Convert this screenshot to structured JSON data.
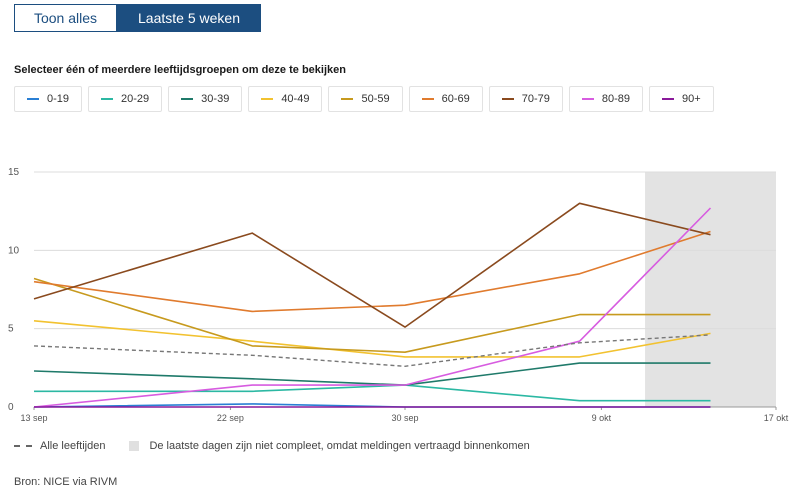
{
  "toggle": {
    "all_label": "Toon alles",
    "last_label": "Laatste 5 weken",
    "active": "Laatste 5 weken"
  },
  "selector": {
    "label": "Selecteer één of meerdere leeftijdsgroepen om deze te bekijken",
    "groups": [
      {
        "label": "0-19",
        "color": "#2a7fd4"
      },
      {
        "label": "20-29",
        "color": "#2cb8a3"
      },
      {
        "label": "30-39",
        "color": "#1f7a6a"
      },
      {
        "label": "40-49",
        "color": "#f2c230"
      },
      {
        "label": "50-59",
        "color": "#c79a1e"
      },
      {
        "label": "60-69",
        "color": "#e07b2e"
      },
      {
        "label": "70-79",
        "color": "#8a4a1e"
      },
      {
        "label": "80-89",
        "color": "#d75ce0"
      },
      {
        "label": "90+",
        "color": "#8a1a9a"
      }
    ]
  },
  "chart_data": {
    "type": "line",
    "x": [
      "13 sep",
      "22 sep",
      "30 sep",
      "9 okt",
      "17 okt"
    ],
    "ylim": [
      0,
      15
    ],
    "yticks": [
      "0",
      "5",
      "10",
      "15"
    ],
    "grid": true,
    "shaded_region": {
      "from": "11 okt",
      "to": "17 okt"
    },
    "series": [
      {
        "name": "0-19",
        "color": "#2a7fd4",
        "dates": [
          "13 sep",
          "23 sep",
          "30 sep",
          "8 okt",
          "14 okt"
        ],
        "values": [
          0.0,
          0.2,
          0.0,
          0.0,
          0.0
        ]
      },
      {
        "name": "20-29",
        "color": "#2cb8a3",
        "dates": [
          "13 sep",
          "23 sep",
          "30 sep",
          "8 okt",
          "14 okt"
        ],
        "values": [
          1.0,
          1.0,
          1.4,
          0.4,
          0.4
        ]
      },
      {
        "name": "30-39",
        "color": "#1f7a6a",
        "dates": [
          "13 sep",
          "23 sep",
          "30 sep",
          "8 okt",
          "14 okt"
        ],
        "values": [
          2.3,
          1.8,
          1.4,
          2.8,
          2.8
        ]
      },
      {
        "name": "40-49",
        "color": "#f2c230",
        "dates": [
          "13 sep",
          "23 sep",
          "30 sep",
          "8 okt",
          "14 okt"
        ],
        "values": [
          5.5,
          4.2,
          3.2,
          3.2,
          4.7
        ]
      },
      {
        "name": "50-59",
        "color": "#c79a1e",
        "dates": [
          "13 sep",
          "23 sep",
          "30 sep",
          "8 okt",
          "14 okt"
        ],
        "values": [
          8.2,
          3.9,
          3.5,
          5.9,
          5.9
        ]
      },
      {
        "name": "60-69",
        "color": "#e07b2e",
        "dates": [
          "13 sep",
          "23 sep",
          "30 sep",
          "8 okt",
          "14 okt"
        ],
        "values": [
          8.0,
          6.1,
          6.5,
          8.5,
          11.2
        ]
      },
      {
        "name": "70-79",
        "color": "#8a4a1e",
        "dates": [
          "13 sep",
          "23 sep",
          "30 sep",
          "8 okt",
          "14 okt"
        ],
        "values": [
          6.9,
          11.1,
          5.1,
          13.0,
          11.0
        ]
      },
      {
        "name": "80-89",
        "color": "#d75ce0",
        "dates": [
          "13 sep",
          "23 sep",
          "30 sep",
          "8 okt",
          "14 okt"
        ],
        "values": [
          0.0,
          1.4,
          1.4,
          4.2,
          12.7
        ]
      },
      {
        "name": "90+",
        "color": "#8a1a9a",
        "dates": [
          "13 sep",
          "23 sep",
          "30 sep",
          "8 okt",
          "14 okt"
        ],
        "values": [
          0.0,
          0.0,
          0.0,
          0.0,
          0.0
        ]
      },
      {
        "name": "Alle leeftijden",
        "color": "#777777",
        "dashed": true,
        "dates": [
          "13 sep",
          "23 sep",
          "30 sep",
          "8 okt",
          "14 okt"
        ],
        "values": [
          3.9,
          3.3,
          2.6,
          4.1,
          4.6
        ]
      }
    ]
  },
  "legend": {
    "all_ages": "Alle leeftijden",
    "incomplete": "De laatste dagen zijn niet compleet, omdat meldingen vertraagd binnenkomen"
  },
  "source": "Bron: NICE via RIVM"
}
